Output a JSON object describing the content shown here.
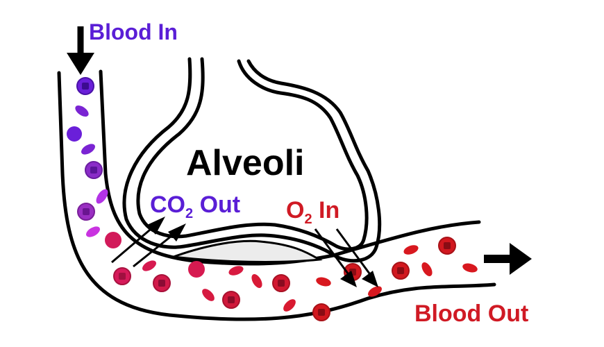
{
  "labels": {
    "blood_in": "Blood In",
    "alveoli": "Alveoli",
    "co2_prefix": "CO",
    "co2_sub": "2",
    "co2_suffix": " Out",
    "o2_prefix": "O",
    "o2_sub": "2",
    "o2_suffix": " In",
    "blood_out": "Blood Out"
  },
  "colors": {
    "background": "#ffffff",
    "outline": "#000000",
    "blood_in_text": "#5a1ed6",
    "co2_text": "#5a1ed6",
    "o2_text": "#d01a24",
    "blood_out_text": "#d01a24",
    "deoxygenated_cell": "#6a1fd9",
    "deoxygenated_cell_mid": "#9a2fc2",
    "transition_cell": "#d21a5a",
    "oxygenated_cell": "#d2181f",
    "alveolus_shade": "#ececec"
  }
}
